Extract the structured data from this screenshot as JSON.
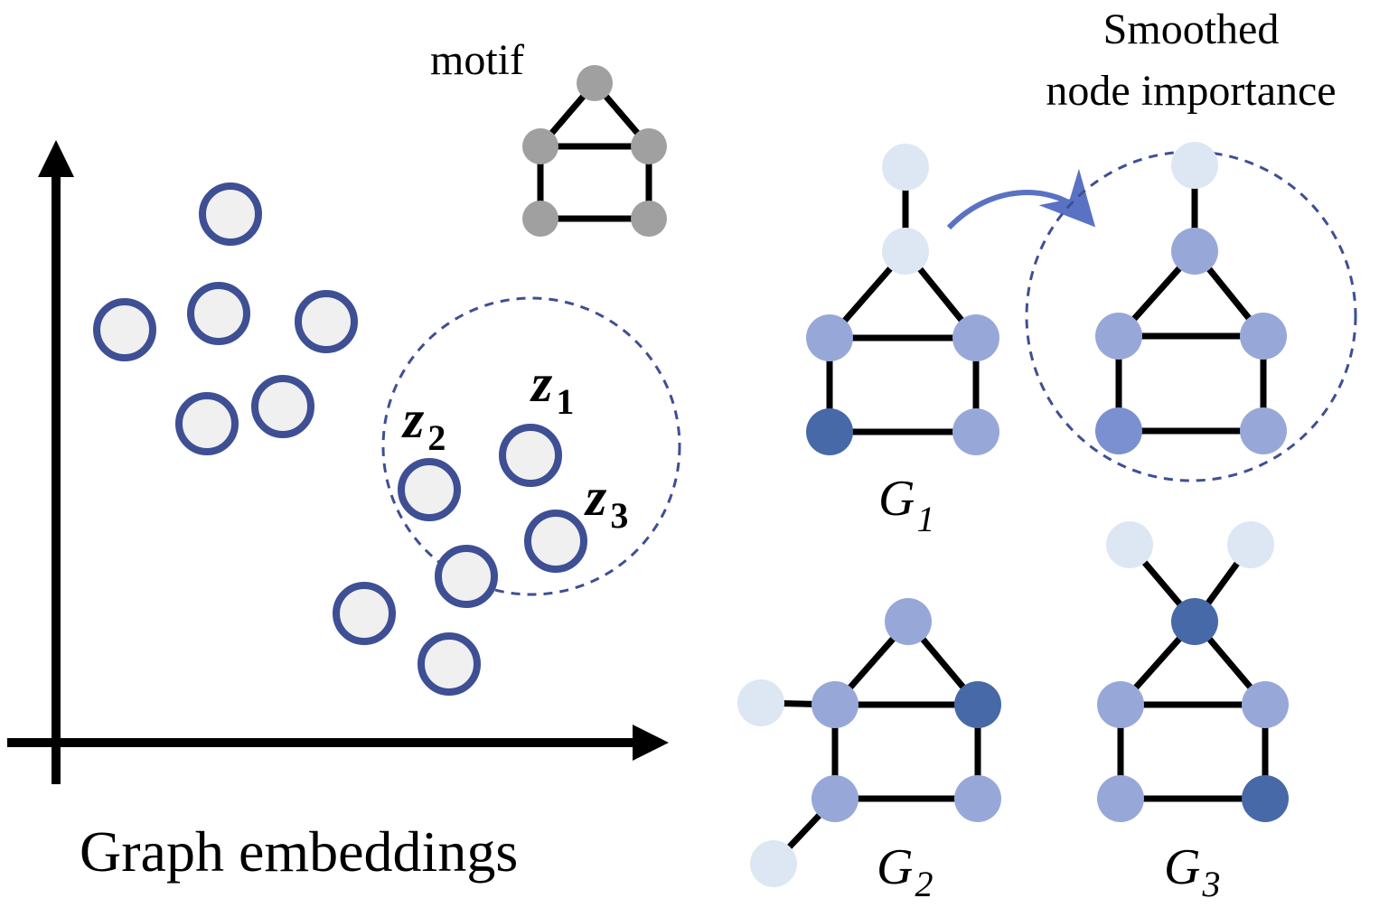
{
  "labels": {
    "motif": "motif",
    "smoothed_line1": "Smoothed",
    "smoothed_line2": "node importance",
    "embeddings": "Graph embeddings",
    "z": "z",
    "z1_sub": "1",
    "z2_sub": "2",
    "z3_sub": "3",
    "g": "G",
    "g1_sub": "1",
    "g2_sub": "2",
    "g3_sub": "3"
  },
  "colors": {
    "embedding_stroke": "#3e4f94",
    "embedding_fill": "#f0f0f0",
    "motif_node": "#a0a0a0",
    "edge": "#000000",
    "importance_low": "#dde7f3",
    "importance_mid": "#97a8d8",
    "importance_mid_dark": "#7b90d0",
    "importance_high": "#4769a8",
    "arrow": "#5a72c4",
    "dashed_circle": "#3e4f94"
  }
}
